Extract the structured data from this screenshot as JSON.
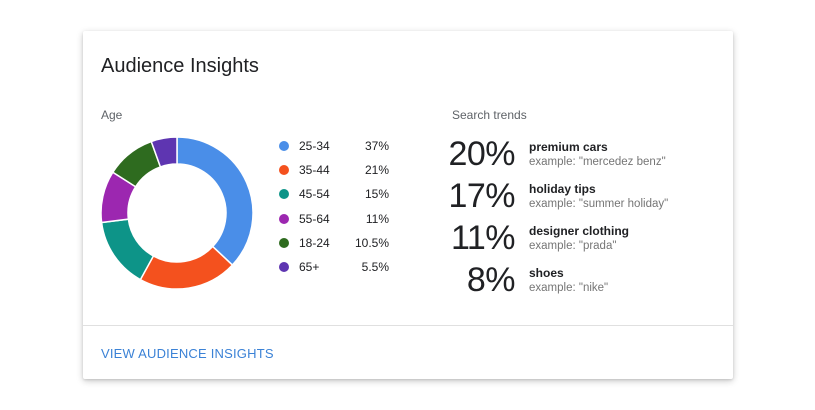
{
  "card": {
    "title": "Audience Insights",
    "age_label": "Age",
    "trends_label": "Search trends",
    "action_label": "VIEW AUDIENCE INSIGHTS"
  },
  "age": [
    {
      "label": "25-34",
      "value": "37%",
      "share": 37,
      "color": "#4a8ee8"
    },
    {
      "label": "35-44",
      "value": "21%",
      "share": 21,
      "color": "#f4511e"
    },
    {
      "label": "45-54",
      "value": "15%",
      "share": 15,
      "color": "#0d9488"
    },
    {
      "label": "55-64",
      "value": "11%",
      "share": 11,
      "color": "#9c27b0"
    },
    {
      "label": "18-24",
      "value": "10.5%",
      "share": 10.5,
      "color": "#2e6b1f"
    },
    {
      "label": "65+",
      "value": "5.5%",
      "share": 5.5,
      "color": "#5e35b1"
    }
  ],
  "trends": [
    {
      "percent": "20%",
      "name": "premium cars",
      "example": "example: \"mercedez benz\""
    },
    {
      "percent": "17%",
      "name": "holiday tips",
      "example": "example: \"summer holiday\""
    },
    {
      "percent": "11%",
      "name": "designer clothing",
      "example": "example: \"prada\""
    },
    {
      "percent": "8%",
      "name": "shoes",
      "example": "example: \"nike\""
    }
  ]
}
